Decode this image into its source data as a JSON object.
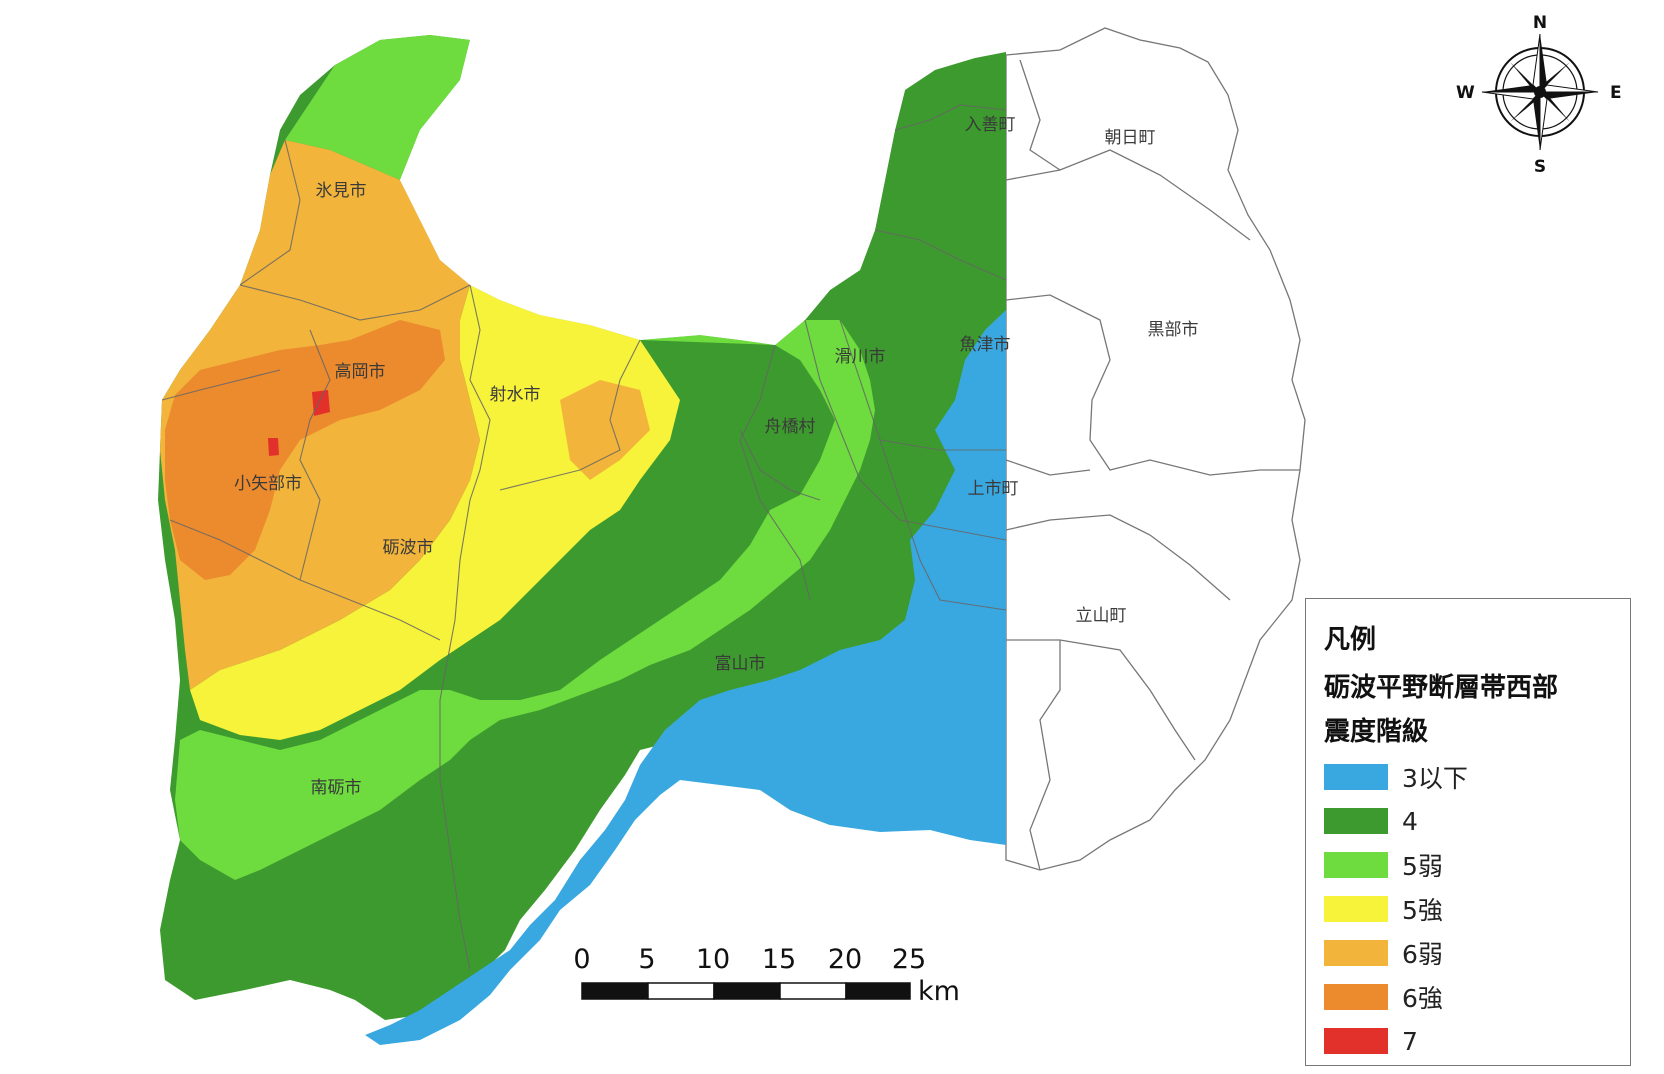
{
  "map": {
    "cities": [
      {
        "name": "朝日町"
      },
      {
        "name": "入善町"
      },
      {
        "name": "黒部市"
      },
      {
        "name": "魚津市"
      },
      {
        "name": "滑川市"
      },
      {
        "name": "上市町"
      },
      {
        "name": "立山町"
      },
      {
        "name": "舟橋村"
      },
      {
        "name": "富山市"
      },
      {
        "name": "氷見市"
      },
      {
        "name": "高岡市"
      },
      {
        "name": "射水市"
      },
      {
        "name": "小矢部市"
      },
      {
        "name": "砺波市"
      },
      {
        "name": "南砺市"
      }
    ]
  },
  "legend": {
    "title": "凡例",
    "subtitle_line1": "砺波平野断層帯西部",
    "subtitle_line2": "震度階級",
    "items": [
      {
        "label": "3以下",
        "color": "#3aa8e0"
      },
      {
        "label": "4",
        "color": "#3d9a2e"
      },
      {
        "label": "5弱",
        "color": "#6edb3f"
      },
      {
        "label": "5強",
        "color": "#f7f23a"
      },
      {
        "label": "6弱",
        "color": "#f2b43a"
      },
      {
        "label": "6強",
        "color": "#ec8a2e"
      },
      {
        "label": "7",
        "color": "#e2302a"
      }
    ]
  },
  "scale_bar": {
    "ticks": [
      "0",
      "5",
      "10",
      "15",
      "20",
      "25"
    ],
    "unit": "km"
  },
  "compass": {
    "north": "N",
    "south": "S",
    "east": "E",
    "west": "W"
  }
}
